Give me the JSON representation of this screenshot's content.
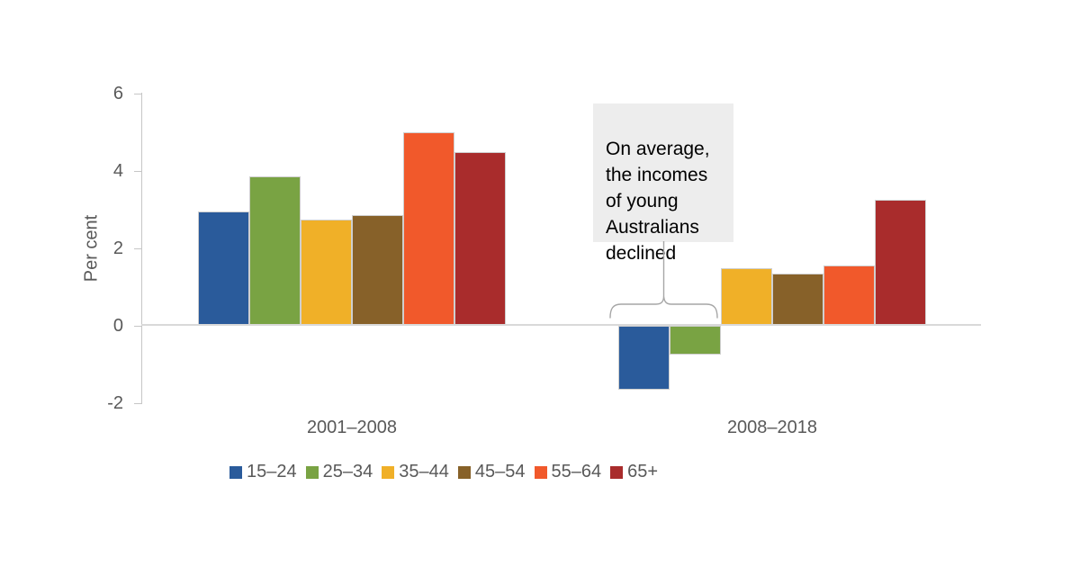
{
  "chart_data": {
    "type": "bar",
    "title": "",
    "xlabel": "",
    "ylabel": "Per cent",
    "categories": [
      "2001–2008",
      "2008–2018"
    ],
    "series": [
      {
        "name": "15–24",
        "color": "#2A5B9B",
        "values": [
          2.95,
          -1.65
        ]
      },
      {
        "name": "25–34",
        "color": "#79A343",
        "values": [
          3.85,
          -0.75
        ]
      },
      {
        "name": "35–44",
        "color": "#F0B028",
        "values": [
          2.75,
          1.5
        ]
      },
      {
        "name": "45–54",
        "color": "#876129",
        "values": [
          2.85,
          1.35
        ]
      },
      {
        "name": "55–64",
        "color": "#F1592B",
        "values": [
          5.0,
          1.55
        ]
      },
      {
        "name": "65+",
        "color": "#A92C2C",
        "values": [
          4.5,
          3.25
        ]
      }
    ],
    "yticks": [
      6,
      4,
      2,
      0,
      -2
    ],
    "ylim": [
      -2,
      6
    ],
    "grid": false,
    "legend_position": "bottom",
    "annotation": "On average,\nthe incomes\nof young\nAustralians\ndeclined"
  },
  "style_colors": {
    "axis_line": "#c6c6c6",
    "zero_line": "#d9d9d9",
    "text_gray": "#595959",
    "annotation_bg": "#ededed",
    "brace": "#a6a6a6"
  }
}
